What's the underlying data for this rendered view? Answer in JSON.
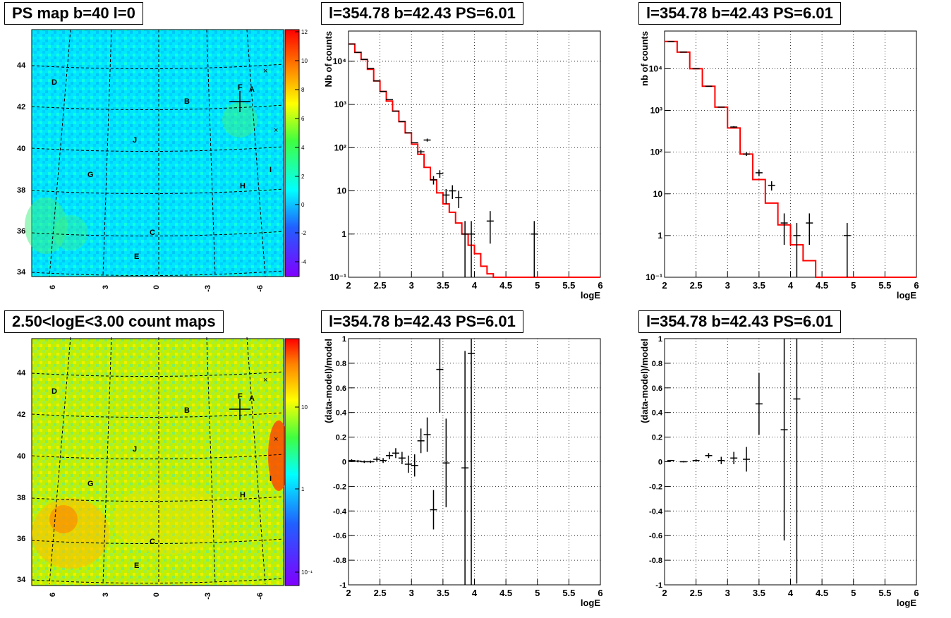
{
  "titles": {
    "ps_map": "PS map b=40 l=0",
    "count_map": "2.50<logE<3.00 count maps",
    "spec1": "l=354.78 b=42.43 PS=6.01",
    "spec2": "l=354.78 b=42.43 PS=6.01",
    "resid1": "l=354.78 b=42.43 PS=6.01",
    "resid2": "l=354.78 b=42.43 PS=6.01"
  },
  "maps": {
    "lat_ticks": [
      "44",
      "42",
      "40",
      "38",
      "36",
      "34"
    ],
    "lon_ticks": [
      "6",
      "3",
      "0",
      "-3",
      "-6"
    ],
    "labels": [
      "A",
      "B",
      "C",
      "D",
      "E",
      "F",
      "G",
      "H",
      "I",
      "J"
    ],
    "colors": {
      "background_ps": "#00e8ff",
      "background_counts": "#c8f000"
    },
    "ps_colorbar_ticks": [
      "12",
      "10",
      "8",
      "6",
      "4",
      "2",
      "0",
      "-2",
      "-4"
    ],
    "count_colorbar_ticks": [
      "10",
      "1",
      "10⁻¹"
    ]
  },
  "chart_data": [
    {
      "type": "line",
      "panel": "spec1",
      "xlabel": "logE",
      "ylabel": "Nb of counts",
      "xlim": [
        2,
        6
      ],
      "ylim": [
        0.1,
        50000
      ],
      "yscale": "log",
      "grid": true,
      "x_ticks": [
        "2",
        "2.5",
        "3",
        "3.5",
        "4",
        "4.5",
        "5",
        "5.5",
        "6"
      ],
      "y_ticks": [
        "10⁻¹",
        "1",
        "10",
        "10²",
        "10³",
        "10⁴"
      ],
      "series": [
        {
          "kind": "model-step",
          "color": "#ff0000",
          "bin_edges": [
            2.0,
            2.1,
            2.2,
            2.3,
            2.4,
            2.5,
            2.6,
            2.7,
            2.8,
            2.9,
            3.0,
            3.1,
            3.2,
            3.3,
            3.4,
            3.5,
            3.6,
            3.7,
            3.8,
            3.9,
            4.0,
            4.1,
            4.2,
            4.3,
            6.0
          ],
          "values": [
            25000,
            16000,
            11000,
            6500,
            3500,
            2000,
            1200,
            700,
            400,
            220,
            120,
            70,
            35,
            18,
            9,
            5,
            3.2,
            1.8,
            1.0,
            0.55,
            0.35,
            0.18,
            0.12,
            0.1
          ]
        },
        {
          "kind": "data-points",
          "color": "#000000",
          "x": [
            2.05,
            2.15,
            2.25,
            2.35,
            2.45,
            2.55,
            2.65,
            2.75,
            2.85,
            2.95,
            3.05,
            3.15,
            3.25,
            3.35,
            3.45,
            3.55,
            3.65,
            3.75,
            3.85,
            3.95,
            4.25,
            4.95
          ],
          "y": [
            25000,
            16000,
            11000,
            6800,
            3500,
            2000,
            1300,
            700,
            400,
            220,
            130,
            80,
            150,
            18,
            25,
            8,
            10,
            7,
            1,
            1,
            2,
            1
          ],
          "y_err": [
            0,
            0,
            0,
            0,
            0,
            0,
            0,
            0,
            0,
            0,
            0,
            9,
            12,
            4,
            5,
            3,
            3.5,
            3,
            1,
            1,
            1.4,
            1
          ]
        }
      ]
    },
    {
      "type": "line",
      "panel": "spec2",
      "xlabel": "logE",
      "ylabel": "nb of counts",
      "xlim": [
        2,
        6
      ],
      "ylim": [
        0.1,
        80000
      ],
      "yscale": "log",
      "grid": true,
      "x_ticks": [
        "2",
        "2.5",
        "3",
        "3.5",
        "4",
        "4.5",
        "5",
        "5.5",
        "6"
      ],
      "y_ticks": [
        "10⁻¹",
        "1",
        "10",
        "10²",
        "10³",
        "10⁴"
      ],
      "series": [
        {
          "kind": "model-step",
          "color": "#ff0000",
          "bin_edges": [
            2.0,
            2.2,
            2.4,
            2.6,
            2.8,
            3.0,
            3.2,
            3.4,
            3.6,
            3.8,
            4.0,
            4.2,
            4.4,
            6.0
          ],
          "values": [
            45000,
            25000,
            10000,
            3800,
            1200,
            380,
            90,
            22,
            6,
            1.8,
            0.6,
            0.25,
            0.1
          ]
        },
        {
          "kind": "data-points",
          "color": "#000000",
          "x": [
            2.1,
            2.3,
            2.5,
            2.7,
            2.9,
            3.1,
            3.3,
            3.5,
            3.7,
            3.9,
            4.1,
            4.3,
            4.9
          ],
          "y": [
            45000,
            25000,
            10000,
            3800,
            1200,
            400,
            90,
            32,
            16,
            2,
            1,
            2,
            1
          ],
          "y_err": [
            0,
            0,
            0,
            0,
            0,
            20,
            9,
            5.6,
            4,
            1.4,
            1,
            1.4,
            1
          ]
        }
      ]
    },
    {
      "type": "scatter",
      "panel": "resid1",
      "xlabel": "logE",
      "ylabel": "(data-model)/model",
      "xlim": [
        2,
        6
      ],
      "ylim": [
        -1,
        1
      ],
      "grid": true,
      "x_ticks": [
        "2",
        "2.5",
        "3",
        "3.5",
        "4",
        "4.5",
        "5",
        "5.5",
        "6"
      ],
      "y_ticks": [
        "1",
        "0.8",
        "0.6",
        "0.4",
        "0.2",
        "0",
        "-0.2",
        "-0.4",
        "-0.6",
        "-0.8",
        "-1"
      ],
      "series": [
        {
          "kind": "data-points",
          "color": "#000000",
          "x": [
            2.05,
            2.15,
            2.25,
            2.35,
            2.45,
            2.55,
            2.65,
            2.75,
            2.85,
            2.95,
            3.05,
            3.15,
            3.25,
            3.35,
            3.45,
            3.55,
            3.85,
            3.95
          ],
          "y": [
            0.01,
            0.005,
            0.0,
            0.0,
            0.02,
            0.01,
            0.05,
            0.07,
            0.03,
            -0.02,
            -0.03,
            0.17,
            0.22,
            -0.39,
            0.75,
            -0.01,
            -0.05,
            0.88
          ],
          "y_err": [
            0.01,
            0.01,
            0.01,
            0.01,
            0.02,
            0.02,
            0.03,
            0.04,
            0.05,
            0.07,
            0.09,
            0.1,
            0.14,
            0.16,
            0.35,
            0.36,
            0.95,
            1.9
          ]
        }
      ]
    },
    {
      "type": "scatter",
      "panel": "resid2",
      "xlabel": "logE",
      "ylabel": "(data-model)/model",
      "xlim": [
        2,
        6
      ],
      "ylim": [
        -1,
        1
      ],
      "grid": true,
      "x_ticks": [
        "2",
        "2.5",
        "3",
        "3.5",
        "4",
        "4.5",
        "5",
        "5.5",
        "6"
      ],
      "y_ticks": [
        "1",
        "0.8",
        "0.6",
        "0.4",
        "0.2",
        "0",
        "-0.2",
        "-0.4",
        "-0.6",
        "-0.8",
        "-1"
      ],
      "series": [
        {
          "kind": "data-points",
          "color": "#000000",
          "x": [
            2.1,
            2.3,
            2.5,
            2.7,
            2.9,
            3.1,
            3.3,
            3.5,
            3.9,
            4.1
          ],
          "y": [
            0.01,
            0.0,
            0.01,
            0.05,
            0.01,
            0.03,
            0.02,
            0.47,
            0.26,
            0.51
          ],
          "y_err": [
            0.005,
            0.005,
            0.01,
            0.02,
            0.03,
            0.05,
            0.1,
            0.25,
            0.9,
            1.5
          ]
        }
      ]
    }
  ]
}
